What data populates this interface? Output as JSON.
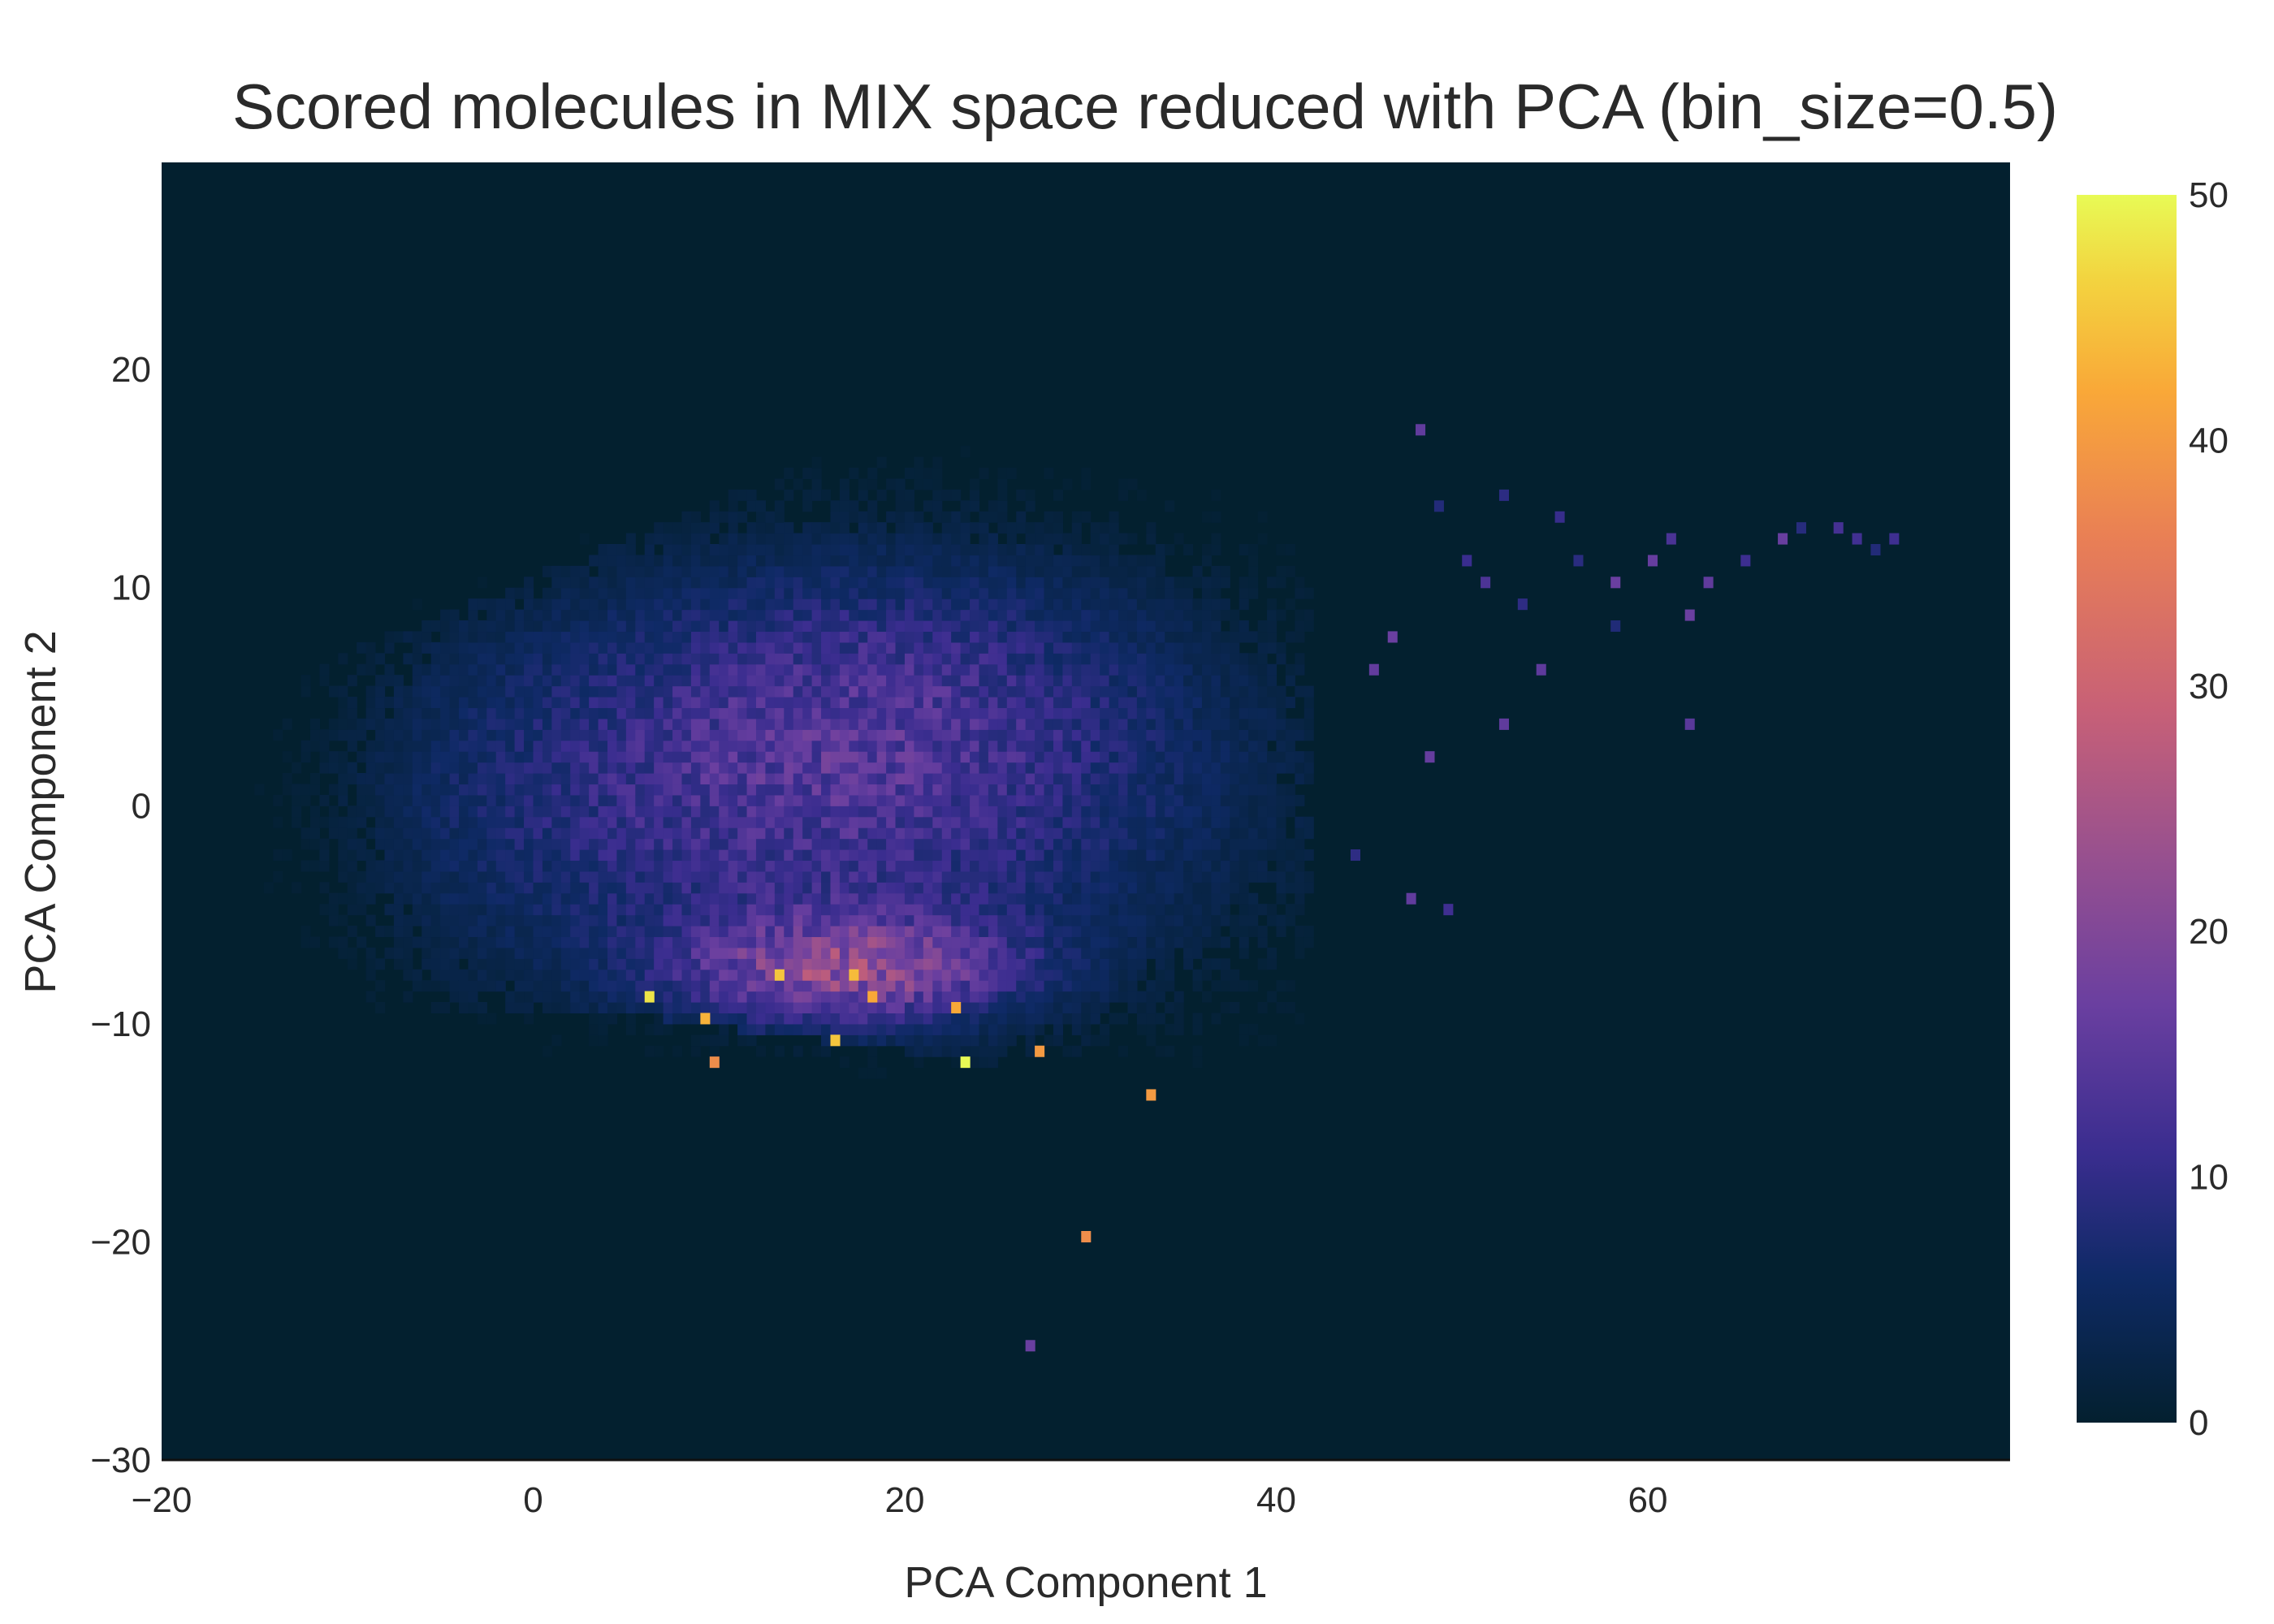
{
  "chart_data": {
    "type": "heatmap",
    "title": "Scored molecules in MIX space reduced with PCA (bin_size=0.5)",
    "xlabel": "PCA Component 1",
    "ylabel": "PCA Component 2",
    "xlim": [
      -20,
      79.5
    ],
    "ylim": [
      -30,
      29.5
    ],
    "x_ticks": [
      -20,
      0,
      20,
      40,
      60
    ],
    "x_tick_labels": [
      "−20",
      "0",
      "20",
      "40",
      "60"
    ],
    "y_ticks": [
      -30,
      -20,
      -10,
      0,
      10,
      20
    ],
    "y_tick_labels": [
      "−30",
      "−20",
      "−10",
      "0",
      "10",
      "20"
    ],
    "bin_size": 0.5,
    "background_color": "#03202f",
    "colorscale": [
      "#0d0887",
      "#46039f",
      "#7201a8",
      "#9c179e",
      "#bd3786",
      "#d8576b",
      "#ed7953",
      "#fb9f3a",
      "#fdca26",
      "#f0f921"
    ],
    "colorbar": {
      "range": [
        0,
        50
      ],
      "ticks": [
        0,
        10,
        20,
        30,
        40,
        50
      ],
      "tick_labels": [
        "0",
        "10",
        "20",
        "30",
        "40",
        "50"
      ],
      "colors": [
        {
          "t": 0.0,
          "color": "#03202f"
        },
        {
          "t": 0.12,
          "color": "#0f2a66"
        },
        {
          "t": 0.22,
          "color": "#3a2d8f"
        },
        {
          "t": 0.34,
          "color": "#6a3fa0"
        },
        {
          "t": 0.46,
          "color": "#97508f"
        },
        {
          "t": 0.58,
          "color": "#c76077"
        },
        {
          "t": 0.72,
          "color": "#e97f55"
        },
        {
          "t": 0.84,
          "color": "#f9a838"
        },
        {
          "t": 0.93,
          "color": "#f3d33f"
        },
        {
          "t": 1.0,
          "color": "#e8fa55"
        }
      ]
    },
    "density_model": {
      "note": "Counts per 0.5x0.5 bin, roughly: main cloud spanning x -17..42, y -21..17; densest region near x 10..26, y -6..-10 reaching ~40-50; extended sparse tail to x ~73 at y ~12.",
      "main_blob": {
        "x_range": [
          -17,
          42
        ],
        "y_range": [
          -21,
          17
        ],
        "peak_count": 50
      },
      "hot_spots": [
        {
          "x": 6,
          "y": -8.8,
          "count": 48
        },
        {
          "x": 13,
          "y": -8.0,
          "count": 45
        },
        {
          "x": 17,
          "y": -7.8,
          "count": 44
        },
        {
          "x": 22.5,
          "y": -9.5,
          "count": 42
        },
        {
          "x": 23,
          "y": -11.8,
          "count": 50
        },
        {
          "x": 9,
          "y": -9.8,
          "count": 43
        },
        {
          "x": 18,
          "y": -9.0,
          "count": 42
        },
        {
          "x": 9.5,
          "y": -11.8,
          "count": 38
        },
        {
          "x": 27,
          "y": -11.2,
          "count": 40
        },
        {
          "x": 33,
          "y": -13.2,
          "count": 40
        },
        {
          "x": 29.5,
          "y": -19.8,
          "count": 38
        },
        {
          "x": 16,
          "y": -11.0,
          "count": 45
        }
      ],
      "tail_points": [
        [
          45,
          6
        ],
        [
          46,
          7.5
        ],
        [
          47.5,
          17
        ],
        [
          50,
          11
        ],
        [
          51,
          10
        ],
        [
          52,
          14
        ],
        [
          53,
          9
        ],
        [
          55,
          13
        ],
        [
          56,
          11
        ],
        [
          58,
          10
        ],
        [
          60,
          11
        ],
        [
          61,
          12
        ],
        [
          62,
          8.5
        ],
        [
          63,
          10
        ],
        [
          65,
          11
        ],
        [
          67,
          12
        ],
        [
          68,
          12.5
        ],
        [
          70,
          12.5
        ],
        [
          71,
          12
        ],
        [
          72,
          11.5
        ],
        [
          73,
          12.3
        ],
        [
          58,
          8
        ],
        [
          54,
          6
        ],
        [
          62,
          3.5
        ],
        [
          48,
          2
        ],
        [
          52,
          3.5
        ],
        [
          44,
          -2.5
        ],
        [
          47,
          -4.5
        ],
        [
          49,
          -5
        ],
        [
          26.5,
          -25
        ],
        [
          48.5,
          13.5
        ]
      ]
    }
  }
}
